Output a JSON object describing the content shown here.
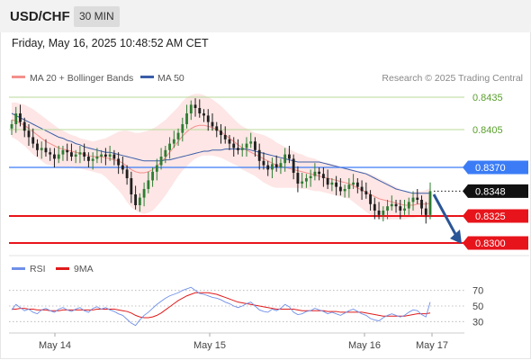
{
  "header": {
    "symbol": "USD/CHF",
    "interval": "30 MIN",
    "datetime": "Friday, May 16, 2025 10:48:52 AM CET"
  },
  "legend": {
    "bb_label": "MA 20 + Bollinger Bands",
    "ma50_label": "MA 50",
    "credit": "Research © 2025 Trading Central"
  },
  "rsi_legend": {
    "rsi_label": "RSI",
    "ma9_label": "9MA"
  },
  "colors": {
    "bb": "#f4908c",
    "ma50": "#3b5ea8",
    "green": "#5aa02c",
    "blue": "#3b7cf6",
    "red": "#e8141b",
    "candle_up": "#2e7d32",
    "candle_down": "#1f1f1f",
    "arrow": "#2a5596",
    "rsi": "#6f8fe8",
    "ma9": "#e01b1b"
  },
  "chart_data": [
    {
      "type": "candlestick",
      "title": "USD/CHF",
      "ylim": [
        0.829,
        0.8445
      ],
      "x_ticks": [
        "May 14",
        "May 15",
        "May 16",
        "May 17"
      ],
      "levels": [
        {
          "value": 0.8435,
          "label": "0.8435",
          "color": "#5aa02c",
          "style": "solid-thin"
        },
        {
          "value": 0.8405,
          "label": "0.8405",
          "color": "#5aa02c",
          "style": "solid-thin"
        },
        {
          "value": 0.837,
          "label": "0.8370",
          "color": "#3b7cf6",
          "style": "solid"
        },
        {
          "value": 0.8348,
          "label": "0.8348",
          "color": "#111111",
          "style": "dotted",
          "note": "last price"
        },
        {
          "value": 0.8325,
          "label": "0.8325",
          "color": "#e8141b",
          "style": "solid-thick"
        },
        {
          "value": 0.83,
          "label": "0.8300",
          "color": "#e8141b",
          "style": "solid-thick"
        }
      ],
      "close_series": [
        0.841,
        0.842,
        0.8412,
        0.8404,
        0.8398,
        0.8392,
        0.8386,
        0.8388,
        0.8384,
        0.8382,
        0.8378,
        0.8382,
        0.8386,
        0.8384,
        0.838,
        0.8382,
        0.8384,
        0.838,
        0.8376,
        0.8378,
        0.838,
        0.8382,
        0.838,
        0.8382,
        0.8378,
        0.8372,
        0.8368,
        0.836,
        0.8345,
        0.8335,
        0.8342,
        0.835,
        0.8358,
        0.8366,
        0.8372,
        0.838,
        0.8386,
        0.8392,
        0.8396,
        0.8402,
        0.841,
        0.842,
        0.8428,
        0.8425,
        0.842,
        0.8418,
        0.8412,
        0.8408,
        0.8404,
        0.84,
        0.8396,
        0.8392,
        0.8388,
        0.8386,
        0.8388,
        0.8392,
        0.8394,
        0.8386,
        0.8376,
        0.8372,
        0.8368,
        0.8373,
        0.837,
        0.8374,
        0.8382,
        0.8378,
        0.8365,
        0.8355,
        0.8357,
        0.836,
        0.8362,
        0.8366,
        0.8364,
        0.836,
        0.8354,
        0.8356,
        0.8352,
        0.8348,
        0.835,
        0.8354,
        0.8356,
        0.8352,
        0.8348,
        0.8345,
        0.8336,
        0.833,
        0.8326,
        0.833,
        0.8334,
        0.8336,
        0.8334,
        0.833,
        0.8332,
        0.8338,
        0.8342,
        0.834,
        0.8332,
        0.8326,
        0.8348
      ],
      "ma20_series": [
        0.8414,
        0.8413,
        0.8411,
        0.8409,
        0.8406,
        0.8403,
        0.84,
        0.8397,
        0.8394,
        0.8392,
        0.839,
        0.8388,
        0.8387,
        0.8386,
        0.8385,
        0.8384,
        0.8383,
        0.8382,
        0.8381,
        0.838,
        0.838,
        0.838,
        0.8379,
        0.8378,
        0.8377,
        0.8376,
        0.8374,
        0.8371,
        0.8368,
        0.8366,
        0.8365,
        0.8365,
        0.8366,
        0.8368,
        0.8371,
        0.8375,
        0.8379,
        0.8384,
        0.8389,
        0.8394,
        0.8399,
        0.8403,
        0.8406,
        0.8408,
        0.8409,
        0.8409,
        0.8408,
        0.8407,
        0.8405,
        0.8403,
        0.84,
        0.8397,
        0.8394,
        0.8391,
        0.8388,
        0.8386,
        0.8384,
        0.8382,
        0.838,
        0.8378,
        0.8376,
        0.8374,
        0.8372,
        0.8371,
        0.837,
        0.8369,
        0.8368,
        0.8367,
        0.8366,
        0.8365,
        0.8364,
        0.8363,
        0.8362,
        0.8361,
        0.836,
        0.8359,
        0.8358,
        0.8357,
        0.8356,
        0.8355,
        0.8353,
        0.8351,
        0.8349,
        0.8347,
        0.8345,
        0.8343,
        0.8341,
        0.834,
        0.8339,
        0.8338,
        0.8337,
        0.8336,
        0.8335,
        0.8335,
        0.8335,
        0.8336,
        0.8336,
        0.8336,
        0.8337
      ],
      "bb_width": [
        0.0016,
        0.0017,
        0.0018,
        0.0019,
        0.002,
        0.0021,
        0.0021,
        0.0021,
        0.0021,
        0.002,
        0.0019,
        0.0018,
        0.0017,
        0.0016,
        0.0015,
        0.0015,
        0.0014,
        0.0014,
        0.0014,
        0.0014,
        0.0015,
        0.0016,
        0.0018,
        0.0021,
        0.0024,
        0.0027,
        0.003,
        0.0033,
        0.0035,
        0.0036,
        0.0037,
        0.0038,
        0.0038,
        0.0038,
        0.0037,
        0.0036,
        0.0035,
        0.0034,
        0.0033,
        0.0032,
        0.0032,
        0.0032,
        0.0031,
        0.003,
        0.0029,
        0.0028,
        0.0027,
        0.0026,
        0.0025,
        0.0024,
        0.0023,
        0.0022,
        0.0021,
        0.002,
        0.002,
        0.002,
        0.002,
        0.002,
        0.0021,
        0.0022,
        0.0022,
        0.0022,
        0.0021,
        0.002,
        0.0019,
        0.0018,
        0.0017,
        0.0016,
        0.0016,
        0.0015,
        0.0015,
        0.0015,
        0.0014,
        0.0014,
        0.0014,
        0.0014,
        0.0014,
        0.0014,
        0.0014,
        0.0014,
        0.0015,
        0.0016,
        0.0017,
        0.0018,
        0.0019,
        0.0019,
        0.0019,
        0.0018,
        0.0017,
        0.0016,
        0.0015,
        0.0014,
        0.0013,
        0.0012,
        0.0012,
        0.0012,
        0.0012,
        0.0013,
        0.0014
      ],
      "ma50_series": [
        0.842,
        0.8418,
        0.8416,
        0.8414,
        0.8412,
        0.841,
        0.8408,
        0.8406,
        0.8404,
        0.8402,
        0.84,
        0.8398,
        0.8397,
        0.8395,
        0.8394,
        0.8392,
        0.8391,
        0.8389,
        0.8388,
        0.8387,
        0.8386,
        0.8385,
        0.8384,
        0.8384,
        0.8383,
        0.8382,
        0.8381,
        0.838,
        0.8379,
        0.8378,
        0.8377,
        0.8376,
        0.8376,
        0.8376,
        0.8376,
        0.8376,
        0.8377,
        0.8377,
        0.8378,
        0.8379,
        0.838,
        0.8381,
        0.8382,
        0.8383,
        0.8384,
        0.8385,
        0.8385,
        0.8386,
        0.8386,
        0.8386,
        0.8387,
        0.8387,
        0.8387,
        0.8387,
        0.8387,
        0.8387,
        0.8386,
        0.8385,
        0.8384,
        0.8383,
        0.8382,
        0.8381,
        0.838,
        0.8379,
        0.8378,
        0.8377,
        0.8376,
        0.8375,
        0.8375,
        0.8375,
        0.8375,
        0.8375,
        0.8375,
        0.8374,
        0.8373,
        0.8372,
        0.8371,
        0.837,
        0.8369,
        0.8368,
        0.8367,
        0.8366,
        0.8365,
        0.8364,
        0.8362,
        0.836,
        0.8358,
        0.8356,
        0.8354,
        0.8352,
        0.835,
        0.8349,
        0.8348,
        0.8347,
        0.8346,
        0.8346,
        0.8346,
        0.8346,
        0.8346
      ],
      "forecast_arrow": {
        "from": 0.8345,
        "to": 0.83
      }
    },
    {
      "type": "line",
      "title": "RSI",
      "ylim": [
        20,
        80
      ],
      "y_ticks": [
        70,
        50,
        30
      ],
      "rsi_series": [
        45,
        52,
        48,
        44,
        46,
        42,
        40,
        45,
        47,
        44,
        42,
        46,
        48,
        45,
        43,
        46,
        48,
        44,
        42,
        47,
        49,
        46,
        48,
        45,
        43,
        40,
        38,
        33,
        28,
        25,
        32,
        38,
        42,
        47,
        52,
        56,
        60,
        63,
        65,
        67,
        70,
        72,
        74,
        70,
        66,
        65,
        63,
        61,
        60,
        58,
        55,
        53,
        50,
        48,
        50,
        53,
        55,
        50,
        45,
        43,
        42,
        46,
        44,
        47,
        52,
        49,
        42,
        39,
        40,
        43,
        44,
        47,
        45,
        43,
        40,
        42,
        40,
        38,
        41,
        44,
        46,
        43,
        40,
        38,
        34,
        32,
        31,
        35,
        38,
        40,
        38,
        36,
        38,
        42,
        45,
        44,
        39,
        36,
        55
      ],
      "ma9_series": [
        46,
        46,
        47,
        47,
        46,
        46,
        45,
        45,
        45,
        44,
        44,
        44,
        45,
        45,
        45,
        45,
        45,
        45,
        45,
        45,
        46,
        46,
        46,
        46,
        46,
        45,
        44,
        43,
        41,
        38,
        36,
        35,
        35,
        36,
        38,
        41,
        45,
        49,
        53,
        57,
        60,
        63,
        65,
        67,
        67,
        67,
        67,
        66,
        65,
        63,
        61,
        59,
        57,
        55,
        54,
        53,
        52,
        51,
        50,
        49,
        48,
        47,
        46,
        46,
        46,
        46,
        46,
        45,
        44,
        44,
        44,
        44,
        44,
        44,
        43,
        43,
        43,
        42,
        42,
        42,
        42,
        42,
        42,
        41,
        40,
        39,
        38,
        37,
        37,
        37,
        37,
        37,
        37,
        38,
        39,
        40,
        40,
        40,
        41
      ]
    }
  ]
}
